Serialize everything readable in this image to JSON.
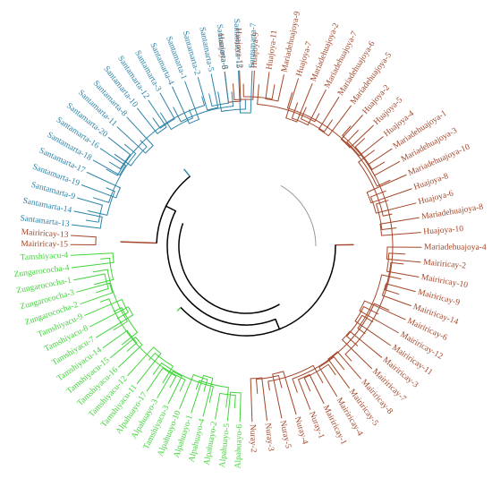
{
  "colors": {
    "blue": "#2e84a8",
    "red": "#a3472a",
    "green": "#43d43c",
    "black": "#000000",
    "gray": "#9a9a9a"
  },
  "clades": [
    {
      "key": "red",
      "labels": [
        "Huajoya-3",
        "Huajoya-12",
        "Huajoya-9",
        "Huajoya-11",
        "Mariadehuajoya-9",
        "Huajoya-7",
        "Mariadehuajoya-2",
        "Mariadehuajoya-7",
        "Mariadehuajoya-6",
        "Mariadehuajoya-5",
        "Huajoya-2",
        "Huajoya-5",
        "Huajoya-4",
        "Mariadehuajoya-1",
        "Mariadehuajoya-3",
        "Mariadehuajoya-10",
        "Huajoya-8",
        "Huajoya-6",
        "Mariadehuajoya-8",
        "Huajoya-10",
        "Mariadehuajoya-4",
        "Mairiricay-2",
        "Mairiricay-10",
        "Mairiricay-9",
        "Mairiricay-14",
        "Mairiricay-6",
        "Mairiricay-12",
        "Mairiricay-11",
        "Mairiricay-3",
        "Mairiricay-7",
        "Mairiricay-8",
        "Mairiricay-5",
        "Mairiricay-4",
        "Mairiricay-1",
        "Nuray-1",
        "Nuray-4",
        "Nuray-5",
        "Nuray-3",
        "Nuray-2"
      ]
    },
    {
      "key": "green",
      "labels": [
        "Alpahuayo-6",
        "Alpahuayo-5",
        "Alpahuayo-2",
        "Alpahuayo-4",
        "Alpahuayo-1",
        "Alpahuayo-10",
        "Tamshiyacu-3",
        "Alpahuayo-3",
        "Alpahuayo-17",
        "Tamshiyacu-11",
        "Tamshiyacu-12",
        "Tamshiyacu-16",
        "Tamshiyacu-15",
        "Tamshiyacu-14",
        "Tamshiyacu-7",
        "Tamshiyacu-8",
        "Tamshiyacu-9",
        "Zungarococha-2",
        "Zungarococha-3",
        "Zungarococha-1",
        "Zungarococha-4",
        "Tamshiyacu-4"
      ]
    },
    {
      "key": "red2",
      "labels": [
        "Mairiricay-15",
        "Mairiricay-13"
      ]
    },
    {
      "key": "blue",
      "labels": [
        "Santamarta-13",
        "Santamarta-14",
        "Santamarta-9",
        "Santamarta-19",
        "Santamarta-17",
        "Santamarta-18",
        "Santamarta-16",
        "Santamarta-20",
        "Santamarta-11",
        "Santamarta-8",
        "Santamarta-10",
        "Santamarta-12",
        "Santamarta-3",
        "Santamarta-4",
        "Santamarta-1",
        "Santamarta-2",
        "Santamarta-5",
        "Santamarta-6",
        "Santamarta-15",
        "Santamarta-7"
      ]
    }
  ]
}
